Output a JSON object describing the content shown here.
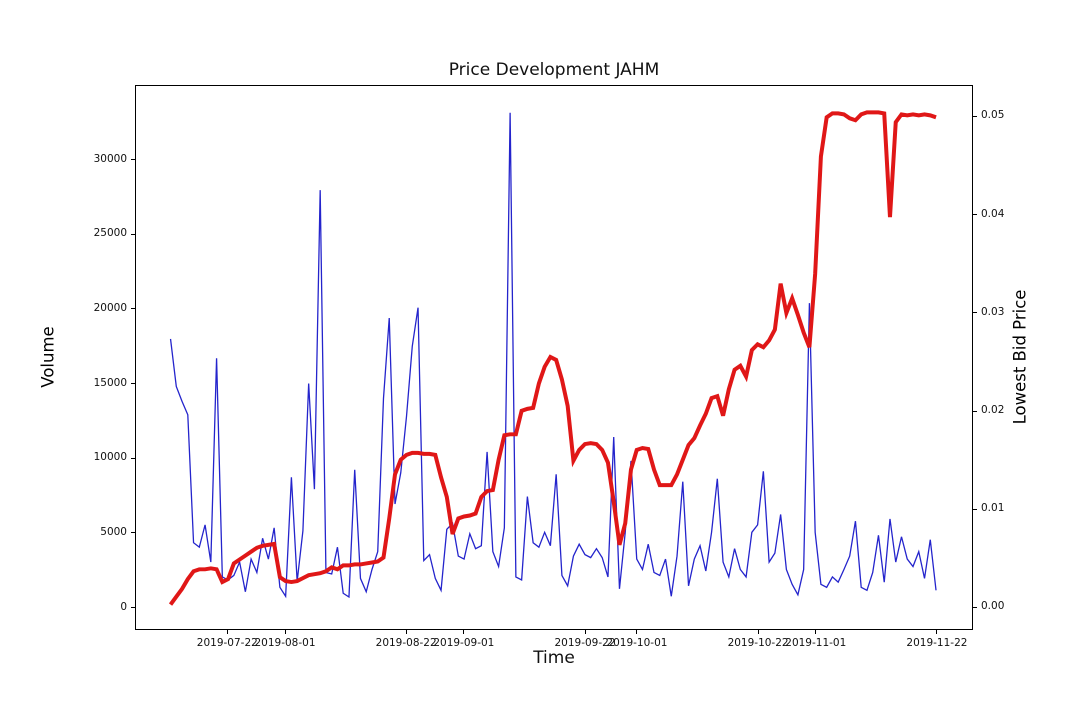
{
  "chart_data": {
    "type": "line",
    "title": "Price Development JAHM",
    "xlabel": "Time",
    "grid": false,
    "legend": "none",
    "x_axis": {
      "start_date": "2019-07-12",
      "points": 134,
      "range_index": [
        -6,
        139.25
      ],
      "ticks": [
        {
          "index": 10,
          "label": "2019-07-22"
        },
        {
          "index": 20,
          "label": "2019-08-01"
        },
        {
          "index": 41,
          "label": "2019-08-22"
        },
        {
          "index": 51,
          "label": "2019-09-01"
        },
        {
          "index": 72,
          "label": "2019-09-22"
        },
        {
          "index": 81,
          "label": "2019-10-01"
        },
        {
          "index": 102,
          "label": "2019-10-22"
        },
        {
          "index": 112,
          "label": "2019-11-01"
        },
        {
          "index": 133,
          "label": "2019-11-22"
        }
      ]
    },
    "left_axis": {
      "label": "Volume",
      "color": "#2424cc",
      "range": [
        -1500,
        35000
      ],
      "ticks": [
        {
          "value": 0,
          "label": "0"
        },
        {
          "value": 5000,
          "label": "5000"
        },
        {
          "value": 10000,
          "label": "10000"
        },
        {
          "value": 15000,
          "label": "15000"
        },
        {
          "value": 20000,
          "label": "20000"
        },
        {
          "value": 25000,
          "label": "25000"
        },
        {
          "value": 30000,
          "label": "30000"
        }
      ]
    },
    "right_axis": {
      "label": "Lowest Bid Price",
      "color": "#e01717",
      "range": [
        -0.0023,
        0.0532
      ],
      "ticks": [
        {
          "value": 0.0,
          "label": "0.00"
        },
        {
          "value": 0.01,
          "label": "0.01"
        },
        {
          "value": 0.02,
          "label": "0.02"
        },
        {
          "value": 0.03,
          "label": "0.03"
        },
        {
          "value": 0.04,
          "label": "0.04"
        },
        {
          "value": 0.05,
          "label": "0.05"
        }
      ]
    },
    "series": [
      {
        "name": "Volume",
        "axis": "left",
        "color": "#2424cc",
        "line_width": 1.3,
        "values": [
          18000,
          14800,
          13800,
          12900,
          4300,
          4000,
          5500,
          3000,
          16700,
          2000,
          1800,
          2100,
          3000,
          1000,
          3200,
          2300,
          4600,
          3200,
          5300,
          1300,
          700,
          8700,
          1700,
          5100,
          15000,
          7900,
          28000,
          2300,
          2200,
          4000,
          900,
          650,
          9200,
          1900,
          1000,
          2500,
          3700,
          14000,
          19400,
          6900,
          9000,
          12800,
          17500,
          20100,
          3100,
          3500,
          1900,
          1100,
          5200,
          5600,
          3400,
          3200,
          4900,
          3900,
          4100,
          10400,
          3700,
          2700,
          5300,
          33200,
          2000,
          1800,
          7400,
          4300,
          4000,
          5000,
          4100,
          8900,
          2100,
          1400,
          3400,
          4200,
          3500,
          3300,
          3900,
          3300,
          2000,
          11400,
          1200,
          5000,
          9800,
          3200,
          2500,
          4200,
          2300,
          2100,
          3200,
          700,
          3400,
          8400,
          1400,
          3200,
          4100,
          2400,
          5000,
          8600,
          3000,
          2000,
          3900,
          2500,
          2000,
          5000,
          5500,
          9100,
          3000,
          3600,
          6200,
          2500,
          1500,
          800,
          2500,
          20400,
          5000,
          1500,
          1300,
          2000,
          1650,
          2500,
          3400,
          5750,
          1300,
          1100,
          2300,
          4800,
          1650,
          5900,
          3000,
          4700,
          3200,
          2700,
          3700,
          1900,
          4500,
          1100
        ]
      },
      {
        "name": "Lowest Bid Price",
        "axis": "right",
        "color": "#e01717",
        "line_width": 4,
        "values": [
          0.0002,
          0.001,
          0.0018,
          0.0028,
          0.0036,
          0.0038,
          0.0038,
          0.0039,
          0.0038,
          0.0025,
          0.0028,
          0.0044,
          0.0048,
          0.0052,
          0.0056,
          0.006,
          0.0062,
          0.0063,
          0.0064,
          0.003,
          0.0026,
          0.0025,
          0.0026,
          0.0029,
          0.0032,
          0.0033,
          0.0034,
          0.0036,
          0.004,
          0.0038,
          0.0042,
          0.0042,
          0.0043,
          0.0043,
          0.0044,
          0.0045,
          0.0046,
          0.005,
          0.009,
          0.0135,
          0.015,
          0.0155,
          0.0157,
          0.0157,
          0.0156,
          0.0156,
          0.0155,
          0.0132,
          0.0112,
          0.0074,
          0.009,
          0.0092,
          0.0093,
          0.0095,
          0.0112,
          0.0118,
          0.0119,
          0.015,
          0.0175,
          0.0176,
          0.0176,
          0.02,
          0.0202,
          0.0203,
          0.0228,
          0.0245,
          0.0255,
          0.0252,
          0.0232,
          0.0205,
          0.0149,
          0.016,
          0.0166,
          0.0167,
          0.0166,
          0.016,
          0.0147,
          0.0107,
          0.0063,
          0.0085,
          0.014,
          0.016,
          0.0162,
          0.0161,
          0.014,
          0.0124,
          0.0124,
          0.0124,
          0.0135,
          0.015,
          0.0165,
          0.0172,
          0.0185,
          0.0197,
          0.0213,
          0.0215,
          0.0195,
          0.0222,
          0.0242,
          0.0246,
          0.0235,
          0.0262,
          0.0268,
          0.0265,
          0.0272,
          0.0283,
          0.033,
          0.03,
          0.0315,
          0.0298,
          0.028,
          0.0265,
          0.034,
          0.046,
          0.05,
          0.0504,
          0.0504,
          0.0503,
          0.0499,
          0.0497,
          0.0503,
          0.0505,
          0.0505,
          0.0505,
          0.0504,
          0.0398,
          0.0495,
          0.0503,
          0.0502,
          0.0503,
          0.0502,
          0.0503,
          0.0502,
          0.05
        ]
      }
    ]
  }
}
